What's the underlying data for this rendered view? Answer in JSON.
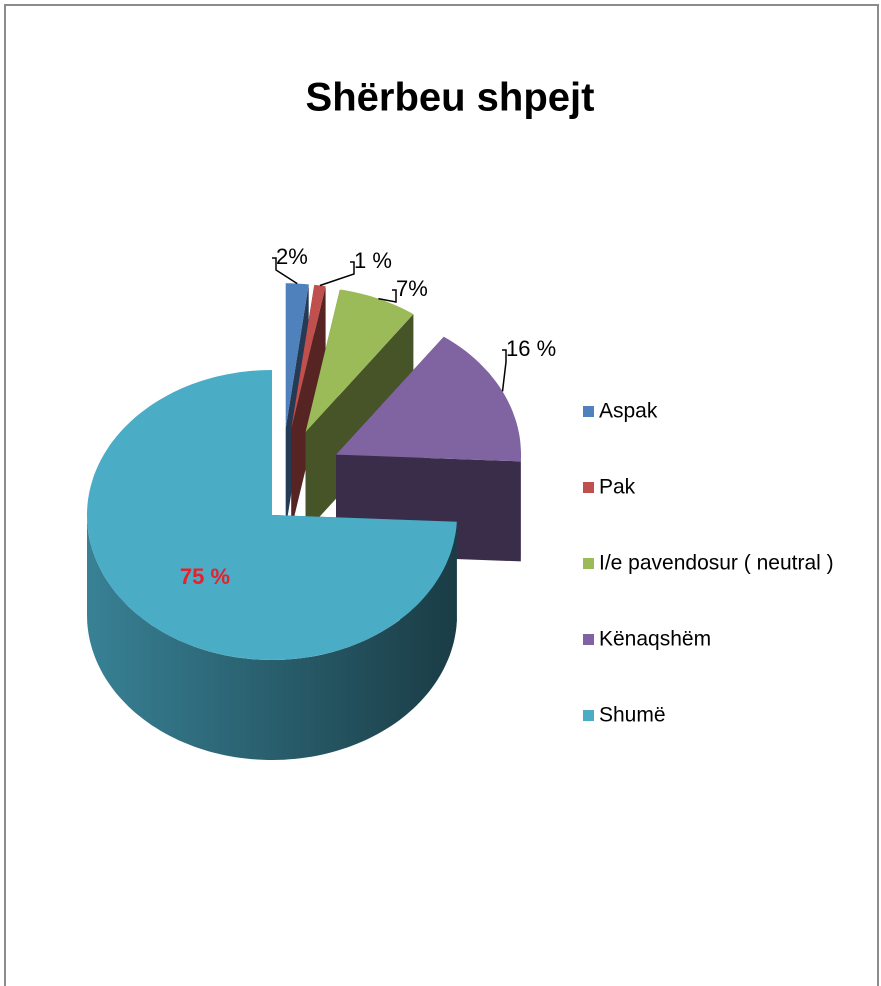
{
  "chart_data": {
    "type": "pie3d",
    "title": "Shërbeu shpejt",
    "categories": [
      "Aspak",
      "Pak",
      "I/e pavendosur ( neutral )",
      "Kënaqshëm",
      "Shumë"
    ],
    "values": [
      2,
      1,
      7,
      16,
      75
    ],
    "value_labels": [
      "2%",
      "1 %",
      "7%",
      "16 %",
      "75 %"
    ],
    "colors": [
      "#4f81bd",
      "#c0504d",
      "#9bbb59",
      "#8064a2",
      "#4bacc6"
    ],
    "legend": "right"
  }
}
